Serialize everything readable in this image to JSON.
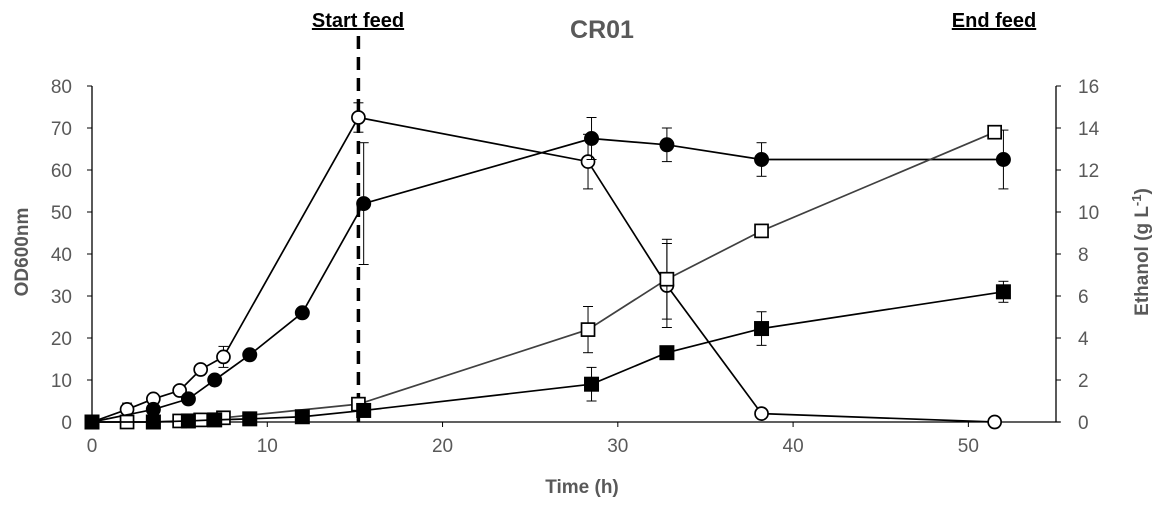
{
  "chart_data": {
    "type": "scatter",
    "title": "CR01",
    "xlabel": "Time (h)",
    "ylabel_left": "OD600nm",
    "ylabel_right_main": "Ethanol (g L",
    "ylabel_right_sup": "-1",
    "ylabel_right_close": ")",
    "xlim": [
      0,
      55
    ],
    "ylim_left": [
      0,
      80
    ],
    "ylim_right": [
      0,
      16
    ],
    "x_ticks": [
      "0",
      "10",
      "20",
      "30",
      "40",
      "50"
    ],
    "y_left_ticks": [
      "0",
      "10",
      "20",
      "30",
      "40",
      "50",
      "60",
      "70",
      "80"
    ],
    "y_right_ticks": [
      "0",
      "2",
      "4",
      "6",
      "8",
      "10",
      "12",
      "14",
      "16"
    ],
    "grid": false,
    "annotations": [
      {
        "text": "Start feed",
        "x": 15.2,
        "position": "top-left"
      },
      {
        "text": "End feed",
        "x": 51.5,
        "position": "top-right"
      }
    ],
    "vline_x": 15.2,
    "series": [
      {
        "marker": "circle-open",
        "axis": "left",
        "x": [
          0,
          2,
          3.5,
          5,
          6.2,
          7.5,
          15.2,
          28.3,
          32.8,
          38.2,
          51.5
        ],
        "y": [
          0,
          3,
          5.5,
          7.5,
          12.5,
          15.5,
          72.5,
          62,
          32.5,
          2,
          0
        ],
        "err": [
          0,
          1.5,
          0,
          0,
          0,
          2.5,
          3.5,
          6.5,
          10,
          0,
          0
        ]
      },
      {
        "marker": "circle-filled",
        "axis": "left",
        "x": [
          0,
          3.5,
          5.5,
          7,
          9,
          12,
          15.5,
          28.5,
          32.8,
          38.2,
          52
        ],
        "y": [
          0,
          3,
          5.5,
          10,
          16,
          26,
          52,
          67.5,
          66,
          62.5,
          62.5
        ],
        "err": [
          0,
          0,
          0,
          0,
          0,
          0,
          14.5,
          5,
          4,
          4,
          7
        ]
      },
      {
        "marker": "square-open",
        "axis": "right",
        "x": [
          0,
          2,
          3.5,
          5,
          6.2,
          7.5,
          15.2,
          28.3,
          32.8,
          38.2,
          51.5
        ],
        "y": [
          0,
          0,
          0,
          0.05,
          0.1,
          0.2,
          0.85,
          4.4,
          6.8,
          9.1,
          13.8
        ],
        "err": [
          0,
          0,
          0,
          0,
          0,
          0,
          0,
          1.1,
          1.9,
          0,
          0.3
        ]
      },
      {
        "marker": "square-filled",
        "axis": "right",
        "x": [
          0,
          3.5,
          5.5,
          7,
          9,
          12,
          15.5,
          28.5,
          32.8,
          38.2,
          52
        ],
        "y": [
          0,
          0,
          0.05,
          0.1,
          0.15,
          0.25,
          0.55,
          1.8,
          3.3,
          4.45,
          6.2
        ],
        "err": [
          0,
          0,
          0,
          0,
          0,
          0,
          0,
          0.8,
          0,
          0.8,
          0.5
        ]
      }
    ]
  }
}
